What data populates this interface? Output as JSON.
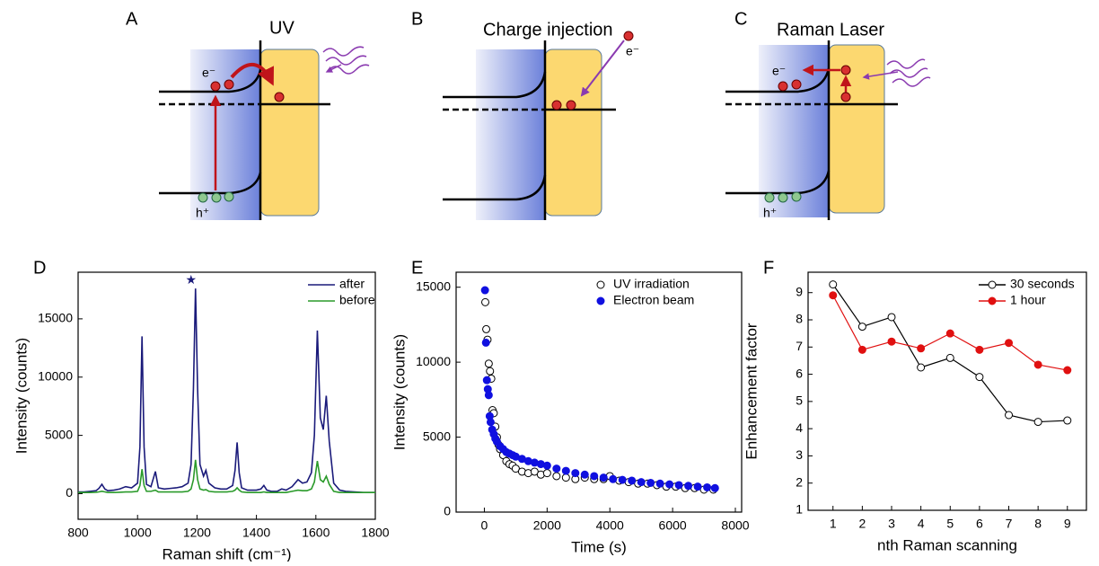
{
  "diagrams": [
    {
      "label": "A",
      "title": "UV",
      "electron": "e⁻",
      "hole": "h⁺"
    },
    {
      "label": "B",
      "title": "Charge injection",
      "electron": "e⁻"
    },
    {
      "label": "C",
      "title": "Raman Laser",
      "electron": "e⁻",
      "hole": "h⁺"
    }
  ],
  "chart_data": [
    {
      "type": "line",
      "panel": "D",
      "xlabel": "Raman shift (cm⁻¹)",
      "ylabel": "Intensity (counts)",
      "xlim": [
        800,
        1800
      ],
      "xticks": [
        800,
        1000,
        1200,
        1400,
        1600,
        1800
      ],
      "ylim": [
        -2200,
        19000
      ],
      "yticks": [
        0,
        5000,
        10000,
        15000
      ],
      "legend": "upper right",
      "annotations": [
        {
          "text": "★",
          "x": 1180,
          "y": 18300
        }
      ],
      "x": [
        800,
        820,
        840,
        860,
        870,
        880,
        890,
        900,
        920,
        940,
        960,
        980,
        1000,
        1008,
        1015,
        1022,
        1030,
        1045,
        1060,
        1070,
        1090,
        1110,
        1130,
        1150,
        1170,
        1180,
        1188,
        1195,
        1202,
        1210,
        1222,
        1230,
        1240,
        1260,
        1280,
        1300,
        1320,
        1328,
        1335,
        1342,
        1350,
        1370,
        1400,
        1415,
        1425,
        1435,
        1450,
        1470,
        1485,
        1500,
        1520,
        1540,
        1555,
        1570,
        1585,
        1595,
        1605,
        1615,
        1625,
        1635,
        1645,
        1660,
        1680,
        1700,
        1730,
        1760,
        1800
      ],
      "series": [
        {
          "name": "after",
          "color": "#1a1a7a",
          "marker": "none",
          "values": [
            150,
            150,
            200,
            250,
            450,
            800,
            400,
            250,
            300,
            400,
            600,
            500,
            900,
            4000,
            13500,
            4000,
            800,
            600,
            1900,
            500,
            400,
            450,
            500,
            600,
            900,
            2500,
            9000,
            17600,
            9000,
            2500,
            1500,
            2000,
            900,
            500,
            400,
            400,
            700,
            2000,
            4400,
            1800,
            500,
            300,
            300,
            400,
            700,
            300,
            200,
            200,
            400,
            300,
            600,
            1200,
            900,
            1000,
            1800,
            5000,
            14000,
            6500,
            5500,
            8400,
            4500,
            900,
            300,
            200,
            150,
            100,
            100
          ]
        },
        {
          "name": "before",
          "color": "#2a9a2a",
          "marker": "none",
          "values": [
            100,
            100,
            100,
            120,
            150,
            200,
            150,
            100,
            100,
            120,
            150,
            150,
            200,
            700,
            2100,
            700,
            200,
            200,
            300,
            150,
            150,
            150,
            150,
            150,
            200,
            400,
            1200,
            2900,
            1200,
            400,
            300,
            350,
            200,
            150,
            150,
            150,
            200,
            300,
            500,
            300,
            150,
            100,
            100,
            100,
            150,
            100,
            100,
            100,
            100,
            100,
            200,
            300,
            250,
            250,
            400,
            1000,
            2800,
            1200,
            1000,
            1500,
            800,
            200,
            100,
            100,
            100,
            100,
            100
          ]
        }
      ]
    },
    {
      "type": "scatter",
      "panel": "E",
      "xlabel": "Time (s)",
      "ylabel": "Intensity (counts)",
      "xlim": [
        -900,
        8200
      ],
      "xticks": [
        0,
        2000,
        4000,
        6000,
        8000
      ],
      "ylim": [
        0,
        16000
      ],
      "yticks": [
        0,
        5000,
        10000,
        15000
      ],
      "legend": "upper right",
      "series": [
        {
          "name": "UV irradiation",
          "color": "#000000",
          "marker": "open",
          "x": [
            30,
            60,
            100,
            140,
            180,
            220,
            260,
            300,
            350,
            400,
            450,
            500,
            600,
            700,
            800,
            900,
            1000,
            1200,
            1400,
            1600,
            1800,
            2000,
            2300,
            2600,
            2900,
            3200,
            3500,
            3800,
            4000,
            4300,
            4600,
            4900,
            5200,
            5500,
            5800,
            6100,
            6400,
            6700,
            7000,
            7300
          ],
          "values": [
            14000,
            12200,
            11500,
            9900,
            9400,
            8900,
            6800,
            6600,
            5700,
            5000,
            4500,
            4200,
            3800,
            3400,
            3200,
            3100,
            2900,
            2700,
            2600,
            2700,
            2500,
            2600,
            2400,
            2300,
            2200,
            2300,
            2200,
            2200,
            2400,
            2100,
            2000,
            1900,
            1900,
            1800,
            1700,
            1700,
            1600,
            1600,
            1500,
            1500
          ]
        },
        {
          "name": "Electron beam",
          "color": "#1010e0",
          "marker": "filled",
          "x": [
            20,
            50,
            80,
            110,
            140,
            170,
            200,
            250,
            300,
            350,
            400,
            500,
            600,
            700,
            800,
            900,
            1000,
            1200,
            1400,
            1600,
            1800,
            2000,
            2300,
            2600,
            2900,
            3200,
            3500,
            3800,
            4100,
            4400,
            4700,
            5000,
            5300,
            5600,
            5900,
            6200,
            6500,
            6800,
            7100,
            7350
          ],
          "values": [
            14800,
            11300,
            8800,
            8200,
            7800,
            6400,
            6000,
            5500,
            5200,
            4900,
            4700,
            4400,
            4200,
            4000,
            3900,
            3800,
            3700,
            3550,
            3400,
            3300,
            3200,
            3100,
            2900,
            2750,
            2600,
            2500,
            2400,
            2300,
            2200,
            2150,
            2100,
            2000,
            1950,
            1900,
            1850,
            1800,
            1750,
            1700,
            1650,
            1600
          ]
        }
      ]
    },
    {
      "type": "line",
      "panel": "F",
      "xlabel": "nth Raman scanning",
      "ylabel": "Enhancement factor",
      "xlim": [
        0.15,
        9.65
      ],
      "xticks": [
        1,
        2,
        3,
        4,
        5,
        6,
        7,
        8,
        9
      ],
      "ylim": [
        1,
        9.75
      ],
      "yticks": [
        1,
        2,
        3,
        4,
        5,
        6,
        7,
        8,
        9
      ],
      "legend": "upper right",
      "x": [
        1,
        2,
        3,
        4,
        5,
        6,
        7,
        8,
        9
      ],
      "series": [
        {
          "name": "30 seconds",
          "color": "#000000",
          "marker": "open",
          "values": [
            9.3,
            7.75,
            8.1,
            6.25,
            6.6,
            5.9,
            4.5,
            4.25,
            4.3
          ]
        },
        {
          "name": "1 hour",
          "color": "#e01010",
          "marker": "filled",
          "values": [
            8.9,
            6.9,
            7.2,
            6.95,
            7.5,
            6.9,
            7.15,
            6.35,
            6.15
          ]
        }
      ]
    }
  ]
}
